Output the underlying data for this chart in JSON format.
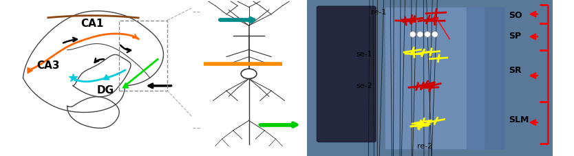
{
  "fig_width": 8.34,
  "fig_height": 2.27,
  "bg_color": "#ffffff",
  "panel_left": {
    "CA1_label": "CA1",
    "CA3_label": "CA3",
    "DG_label": "DG",
    "orange_path_color": "#FF6600",
    "brown_path_color": "#8B4513",
    "cyan_path_color": "#00CCDD",
    "green_path_color": "#00DD00",
    "dashed_box_color": "#888888"
  },
  "panel_middle": {
    "neuron_color": "#333333",
    "teal_bar_color": "#008B8B",
    "orange_bar_color": "#FF8C00",
    "green_bar_color": "#00CC00"
  },
  "panel_right": {
    "SO_label": "SO",
    "SP_label": "SP",
    "SR_label": "SR",
    "SLM_label": "SLM",
    "re1_label": "re-1",
    "re2_label": "re-2",
    "se1_label": "se-1",
    "se2_label": "se-2",
    "bracket_color": "#FF0000",
    "yellow_cross_color": "#FFFF00",
    "red_cross_color": "#CC0000"
  }
}
